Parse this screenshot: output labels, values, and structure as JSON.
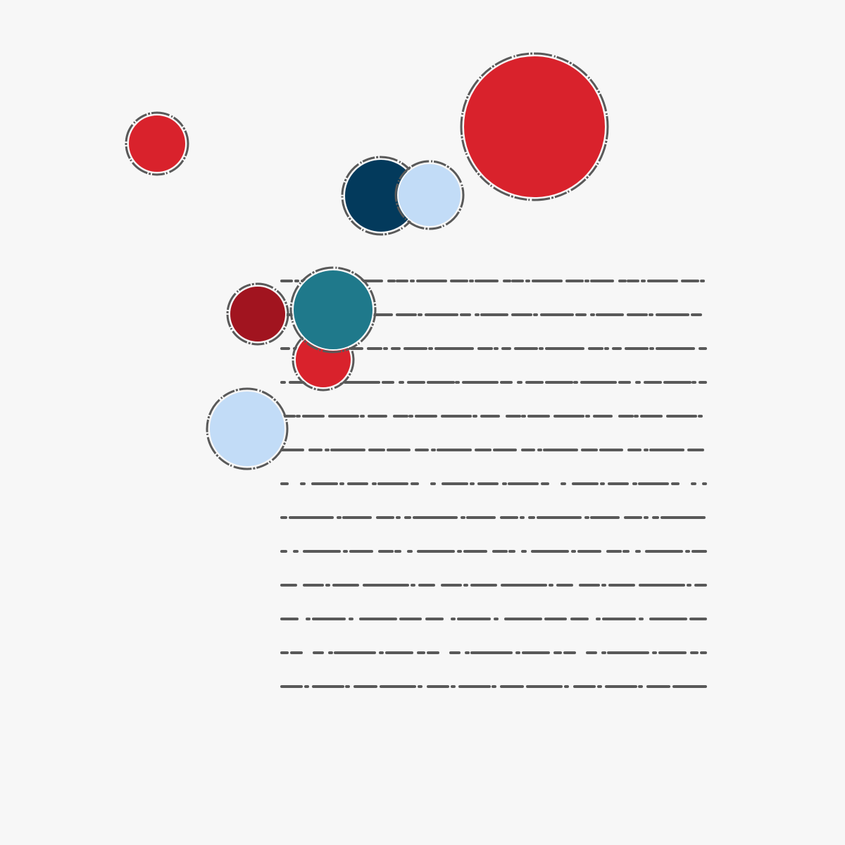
{
  "palette": {
    "background": "#f7f7f7",
    "outline": "#595959",
    "red": "#d9222c",
    "dark_red": "#a1141f",
    "navy": "#033a5c",
    "light_blue": "#c2dcf7",
    "teal": "#1f798b"
  },
  "lines": {
    "count": 13,
    "style": "dash-dot"
  },
  "circles": [
    {
      "id": "circle-red-small-left",
      "color": "red"
    },
    {
      "id": "circle-red-large",
      "color": "red"
    },
    {
      "id": "circle-navy",
      "color": "navy"
    },
    {
      "id": "circle-light-blue-top",
      "color": "light_blue"
    },
    {
      "id": "circle-dark-red",
      "color": "dark_red"
    },
    {
      "id": "circle-red-mid",
      "color": "red"
    },
    {
      "id": "circle-teal",
      "color": "teal"
    },
    {
      "id": "circle-light-blue-bottom",
      "color": "light_blue"
    }
  ]
}
